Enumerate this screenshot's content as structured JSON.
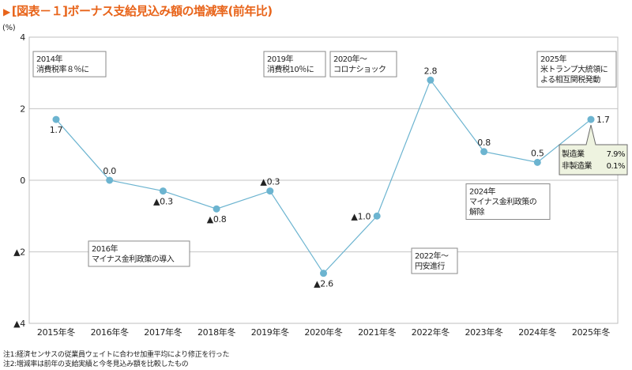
{
  "title": {
    "marker": "▶",
    "text": "[図表－１]ボーナス支給見込み額の増減率(前年比)"
  },
  "chart_data": {
    "type": "line",
    "title": "[図表－１]ボーナス支給見込み額の増減率(前年比)",
    "ylabel": "(%)",
    "xlabel": "",
    "ylim": [
      -4,
      4
    ],
    "yticks": [
      4,
      2,
      0,
      -2,
      -4
    ],
    "ytick_labels": [
      "4",
      "2",
      "0",
      "▲2",
      "▲4"
    ],
    "grid": true,
    "categories": [
      "2015年冬",
      "2016年冬",
      "2017年冬",
      "2018年冬",
      "2019年冬",
      "2020年冬",
      "2021年冬",
      "2022年冬",
      "2023年冬",
      "2024年冬",
      "2025年冬"
    ],
    "series": [
      {
        "name": "ボーナス支給見込み額の増減率",
        "color": "#6cb4d0",
        "values": [
          1.7,
          0.0,
          -0.3,
          -0.8,
          -0.3,
          -2.6,
          -1.0,
          2.8,
          0.8,
          0.5,
          1.7
        ],
        "labels": [
          "1.7",
          "0.0",
          "▲0.3",
          "▲0.8",
          "▲0.3",
          "▲2.6",
          "▲1.0",
          "2.8",
          "0.8",
          "0.5",
          "1.7"
        ],
        "label_pos": [
          "below",
          "above",
          "below",
          "below",
          "above",
          "below",
          "left",
          "above",
          "above",
          "above",
          "right"
        ]
      }
    ],
    "annotations": [
      {
        "lines": [
          "2014年",
          "消費税率８％に"
        ],
        "anchor": "2015年冬",
        "y": 3.6
      },
      {
        "lines": [
          "2016年",
          "マイナス金利政策の導入"
        ],
        "anchor": "2016年冬",
        "y": -1.7
      },
      {
        "lines": [
          "2019年",
          "消費税10％に"
        ],
        "anchor": "2019年冬",
        "y": 3.6
      },
      {
        "lines": [
          "2020年～",
          "コロナショック"
        ],
        "anchor": "2020年冬",
        "y": 3.6
      },
      {
        "lines": [
          "2022年～",
          "円安進行"
        ],
        "anchor": "2022年冬",
        "y": -1.9
      },
      {
        "lines": [
          "2024年",
          "マイナス金利政策の",
          "解除"
        ],
        "anchor": "2023年冬",
        "y": -0.1
      },
      {
        "lines": [
          "2025年",
          "米トランプ大統領に",
          "よる相互関税発動"
        ],
        "anchor": "2025年冬",
        "y": 3.6
      }
    ],
    "callout": {
      "anchor": "2025年冬",
      "rows": [
        {
          "label": "製造業",
          "value": "7.9%"
        },
        {
          "label": "非製造業",
          "value": "0.1%"
        }
      ],
      "background": "#eef3e0"
    },
    "colors": {
      "title": "#e8641a",
      "line": "#6cb4d0",
      "grid": "#cfcfcf",
      "frame": "#bfbfbf"
    }
  },
  "notes": [
    "注1:経済センサスの従業員ウェイトに合わせ加重平均により修正を行った",
    "注2:増減率は前年の支給実績と今冬見込み額を比較したもの"
  ]
}
